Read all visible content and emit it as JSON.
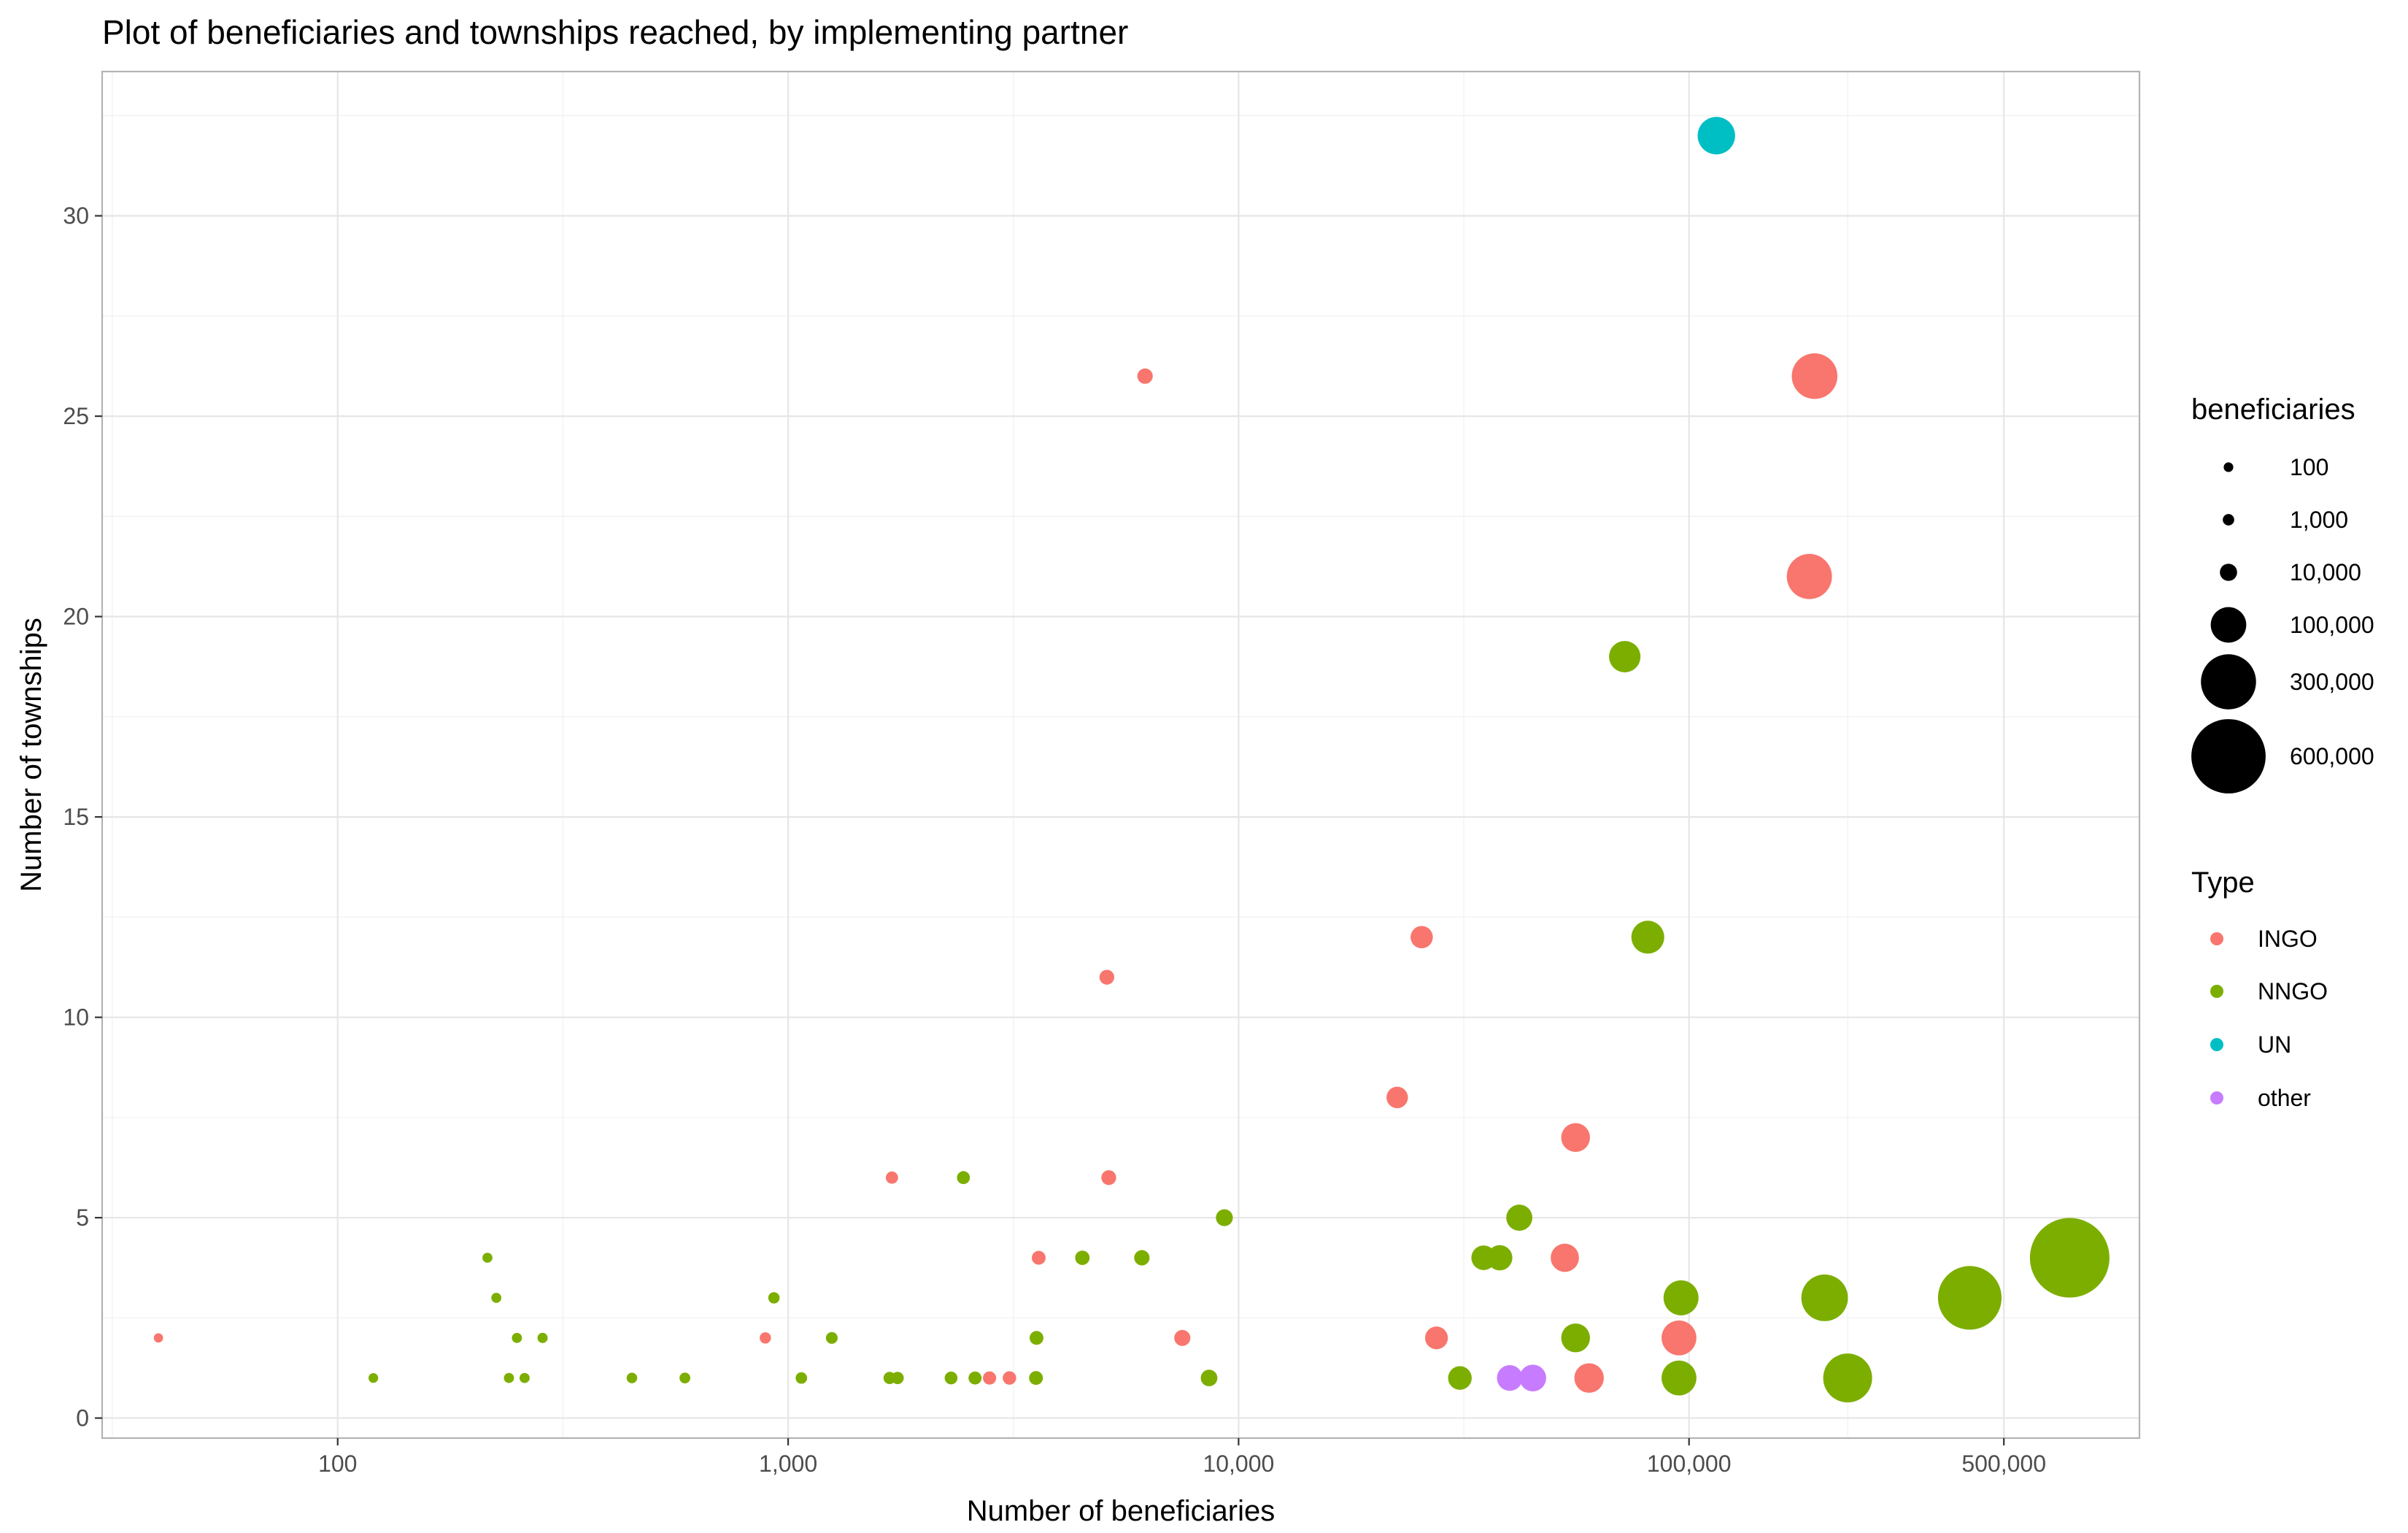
{
  "chart_data": {
    "type": "scatter",
    "title": "Plot of beneficiaries and townships reached, by implementing partner",
    "xlabel": "Number of beneficiaries",
    "ylabel": "Number of townships",
    "x_scale": "log10",
    "xlim": [
      30,
      1000000
    ],
    "ylim": [
      -0.5,
      33.6
    ],
    "x_ticks": [
      {
        "value": 100,
        "label": "100"
      },
      {
        "value": 1000,
        "label": "1,000"
      },
      {
        "value": 10000,
        "label": "10,000"
      },
      {
        "value": 100000,
        "label": "100,000"
      },
      {
        "value": 500000,
        "label": "500,000"
      }
    ],
    "x_minor_ticks": [
      31.6,
      316,
      3162,
      31623,
      225000
    ],
    "y_ticks": [
      {
        "value": 0,
        "label": "0"
      },
      {
        "value": 5,
        "label": "5"
      },
      {
        "value": 10,
        "label": "10"
      },
      {
        "value": 15,
        "label": "15"
      },
      {
        "value": 20,
        "label": "20"
      },
      {
        "value": 25,
        "label": "25"
      },
      {
        "value": 30,
        "label": "30"
      }
    ],
    "y_minor_ticks": [
      2.5,
      7.5,
      12.5,
      17.5,
      22.5,
      27.5,
      32.5
    ],
    "grid": true,
    "legend_position": "right",
    "size_legend": {
      "title": "beneficiaries",
      "entries": [
        {
          "value": 100,
          "label": "100"
        },
        {
          "value": 1000,
          "label": "1,000"
        },
        {
          "value": 10000,
          "label": "10,000"
        },
        {
          "value": 100000,
          "label": "100,000"
        },
        {
          "value": 300000,
          "label": "300,000"
        },
        {
          "value": 600000,
          "label": "600,000"
        }
      ]
    },
    "color_legend": {
      "title": "Type",
      "entries": [
        {
          "name": "INGO",
          "color": "#F8766D"
        },
        {
          "name": "NNGO",
          "color": "#7CAE00"
        },
        {
          "name": "UN",
          "color": "#00BFC4"
        },
        {
          "name": "other",
          "color": "#C77CFF"
        }
      ]
    },
    "series": [
      {
        "name": "INGO",
        "color": "#F8766D",
        "points": [
          {
            "x": 40,
            "y": 2
          },
          {
            "x": 890,
            "y": 2
          },
          {
            "x": 1700,
            "y": 6
          },
          {
            "x": 2800,
            "y": 1
          },
          {
            "x": 3100,
            "y": 1
          },
          {
            "x": 3600,
            "y": 4
          },
          {
            "x": 5100,
            "y": 11
          },
          {
            "x": 5150,
            "y": 6
          },
          {
            "x": 6200,
            "y": 26
          },
          {
            "x": 7500,
            "y": 2
          },
          {
            "x": 22500,
            "y": 8
          },
          {
            "x": 25500,
            "y": 12
          },
          {
            "x": 27500,
            "y": 2
          },
          {
            "x": 53000,
            "y": 4
          },
          {
            "x": 56000,
            "y": 7
          },
          {
            "x": 60000,
            "y": 1
          },
          {
            "x": 95000,
            "y": 2
          },
          {
            "x": 185000,
            "y": 21
          },
          {
            "x": 190000,
            "y": 26
          }
        ]
      },
      {
        "name": "NNGO",
        "color": "#7CAE00",
        "points": [
          {
            "x": 120,
            "y": 1
          },
          {
            "x": 215,
            "y": 4
          },
          {
            "x": 225,
            "y": 3
          },
          {
            "x": 240,
            "y": 1
          },
          {
            "x": 250,
            "y": 2
          },
          {
            "x": 260,
            "y": 1
          },
          {
            "x": 285,
            "y": 2
          },
          {
            "x": 450,
            "y": 1
          },
          {
            "x": 590,
            "y": 1
          },
          {
            "x": 930,
            "y": 3
          },
          {
            "x": 1070,
            "y": 1
          },
          {
            "x": 1250,
            "y": 2
          },
          {
            "x": 1680,
            "y": 1
          },
          {
            "x": 1750,
            "y": 1
          },
          {
            "x": 2300,
            "y": 1
          },
          {
            "x": 2450,
            "y": 6
          },
          {
            "x": 2600,
            "y": 1
          },
          {
            "x": 3550,
            "y": 1
          },
          {
            "x": 3560,
            "y": 2
          },
          {
            "x": 4500,
            "y": 4
          },
          {
            "x": 6100,
            "y": 4
          },
          {
            "x": 8600,
            "y": 1
          },
          {
            "x": 9300,
            "y": 5
          },
          {
            "x": 31000,
            "y": 1
          },
          {
            "x": 35000,
            "y": 4
          },
          {
            "x": 38000,
            "y": 4
          },
          {
            "x": 42000,
            "y": 5
          },
          {
            "x": 56000,
            "y": 2
          },
          {
            "x": 72000,
            "y": 19
          },
          {
            "x": 81000,
            "y": 12
          },
          {
            "x": 95000,
            "y": 1
          },
          {
            "x": 96000,
            "y": 3
          },
          {
            "x": 200000,
            "y": 3
          },
          {
            "x": 225000,
            "y": 1
          },
          {
            "x": 420000,
            "y": 3
          },
          {
            "x": 700000,
            "y": 4
          }
        ]
      },
      {
        "name": "UN",
        "color": "#00BFC4",
        "points": [
          {
            "x": 115000,
            "y": 32
          }
        ]
      },
      {
        "name": "other",
        "color": "#C77CFF",
        "points": [
          {
            "x": 40000,
            "y": 1
          },
          {
            "x": 45000,
            "y": 1
          }
        ]
      }
    ]
  }
}
